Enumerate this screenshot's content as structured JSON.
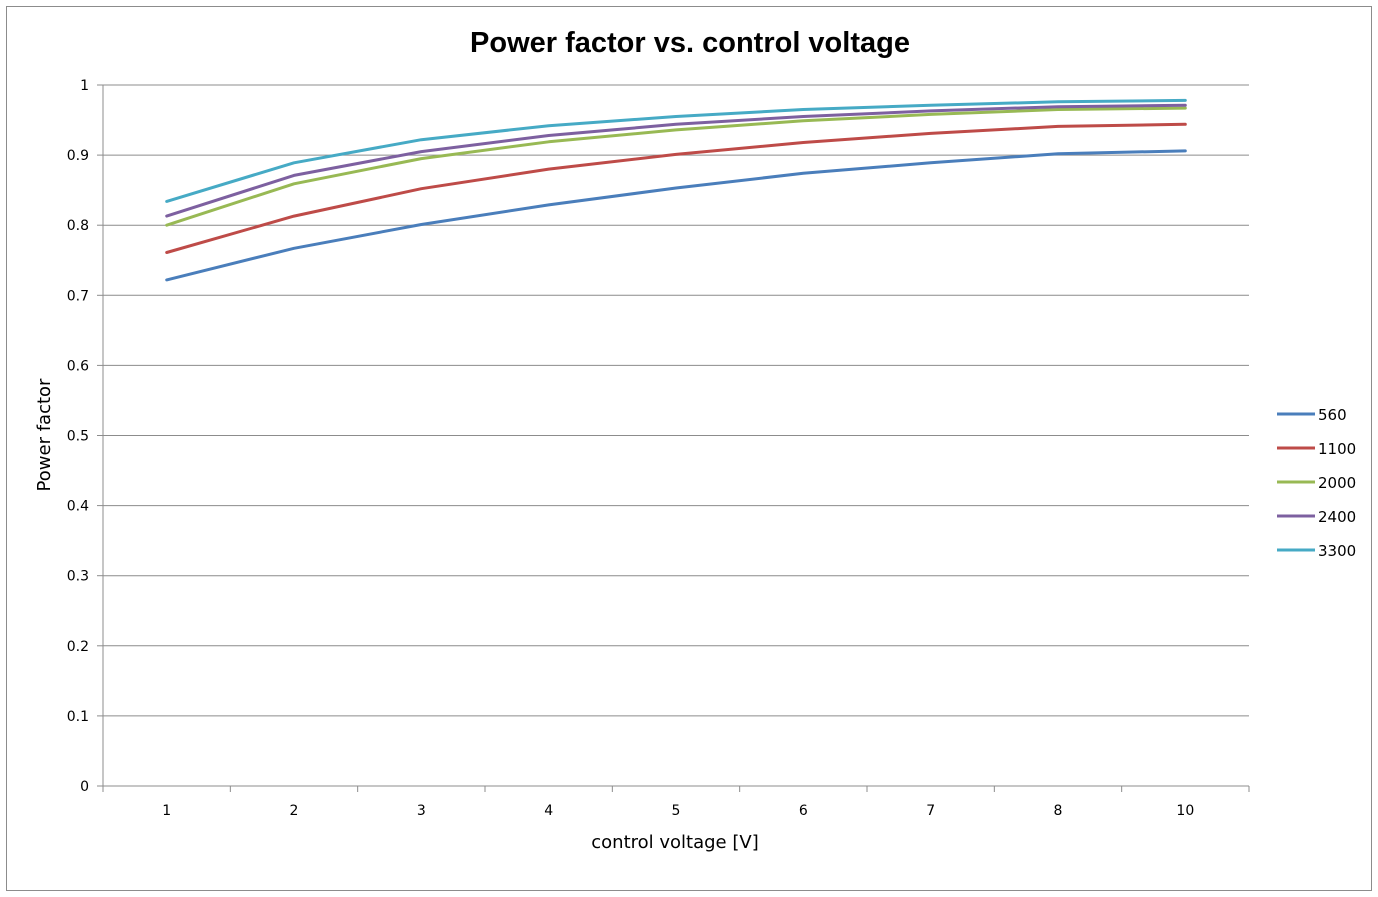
{
  "chart_data": {
    "type": "line",
    "title": "Power factor vs. control voltage",
    "xlabel": "control voltage [V]",
    "ylabel": "Power factor",
    "categories": [
      "1",
      "2",
      "3",
      "4",
      "5",
      "6",
      "7",
      "8",
      "10"
    ],
    "ylim": [
      0,
      1
    ],
    "yticks": [
      "0",
      "0.1",
      "0.2",
      "0.3",
      "0.4",
      "0.5",
      "0.6",
      "0.7",
      "0.8",
      "0.9",
      "1"
    ],
    "grid": true,
    "legend_position": "right",
    "series": [
      {
        "name": "560",
        "color": "#4a7ebb",
        "values": [
          0.722,
          0.767,
          0.801,
          0.829,
          0.853,
          0.874,
          0.889,
          0.902,
          0.906
        ]
      },
      {
        "name": "1100",
        "color": "#be4b48",
        "values": [
          0.761,
          0.813,
          0.852,
          0.88,
          0.901,
          0.918,
          0.931,
          0.941,
          0.944
        ]
      },
      {
        "name": "2000",
        "color": "#98b954",
        "values": [
          0.8,
          0.859,
          0.895,
          0.919,
          0.936,
          0.949,
          0.958,
          0.965,
          0.967
        ]
      },
      {
        "name": "2400",
        "color": "#7d60a0",
        "values": [
          0.813,
          0.871,
          0.905,
          0.928,
          0.944,
          0.955,
          0.963,
          0.969,
          0.971
        ]
      },
      {
        "name": "3300",
        "color": "#46aac5",
        "values": [
          0.834,
          0.889,
          0.922,
          0.942,
          0.955,
          0.965,
          0.971,
          0.976,
          0.978
        ]
      }
    ]
  }
}
